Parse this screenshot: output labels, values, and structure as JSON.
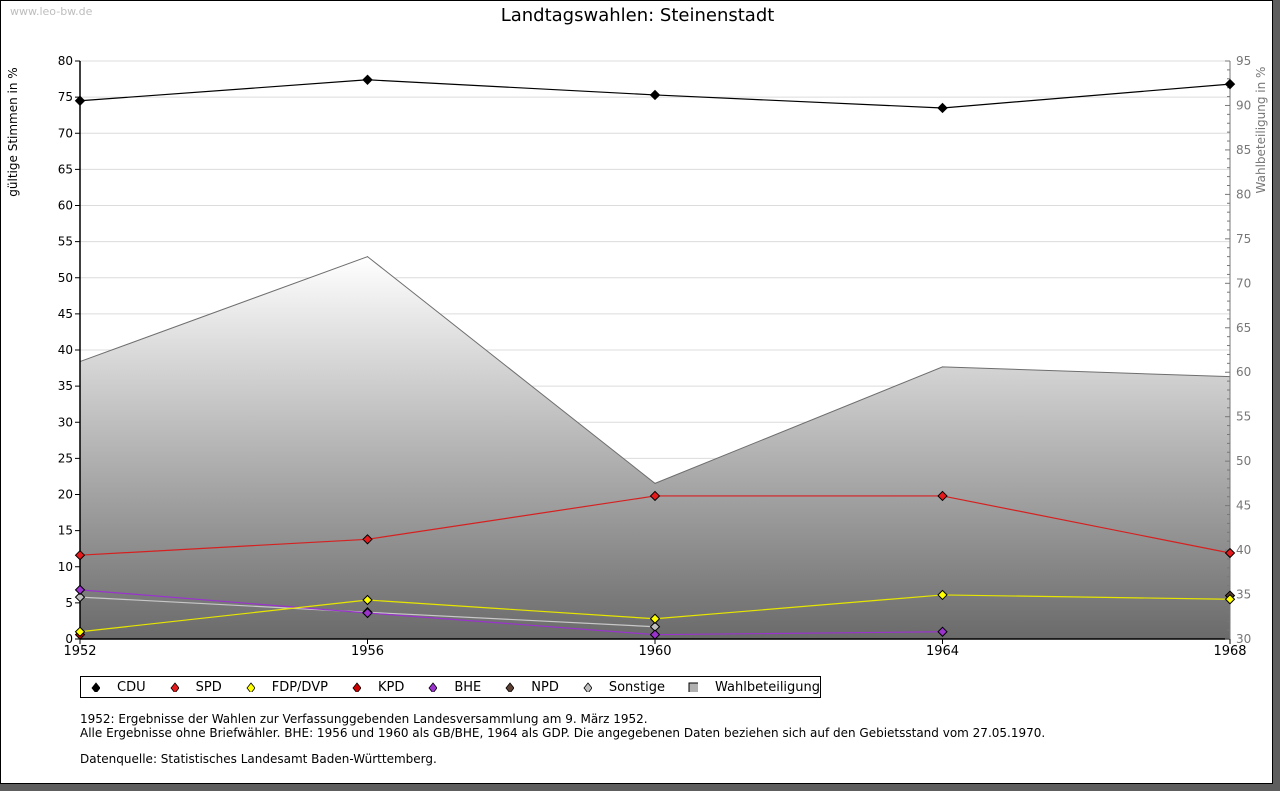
{
  "watermark": "www.leo-bw.de",
  "chart_data": {
    "type": "line",
    "title": "Landtagswahlen: Steinenstadt",
    "ylabel": "gültige Stimmen in %",
    "y2label": "Wahlbeteiligung in %",
    "ylim": [
      0,
      80
    ],
    "y2lim": [
      30,
      95
    ],
    "yticks": [
      "0",
      "5",
      "10",
      "15",
      "20",
      "25",
      "30",
      "35",
      "40",
      "45",
      "50",
      "55",
      "60",
      "65",
      "70",
      "75",
      "80"
    ],
    "y2ticks": [
      "30",
      "35",
      "40",
      "45",
      "50",
      "55",
      "60",
      "65",
      "70",
      "75",
      "80",
      "85",
      "90",
      "95"
    ],
    "categories": [
      "1952",
      "1956",
      "1960",
      "1964",
      "1968"
    ],
    "grid": true,
    "legend_position": "bottom",
    "turnout": {
      "name": "Wahlbeteiligung",
      "values": [
        61.2,
        73.0,
        47.5,
        60.6,
        59.5
      ]
    },
    "series": [
      {
        "name": "CDU",
        "color": "#000000",
        "line": "#000000",
        "values": [
          74.5,
          77.4,
          75.3,
          73.5,
          76.8
        ]
      },
      {
        "name": "SPD",
        "color": "#e41a1c",
        "line": "#d62020",
        "values": [
          11.6,
          13.8,
          19.8,
          19.8,
          11.9
        ]
      },
      {
        "name": "FDP/DVP",
        "color": "#ffff00",
        "line": "#e6e600",
        "values": [
          1.0,
          5.4,
          2.8,
          6.1,
          5.5
        ]
      },
      {
        "name": "KPD",
        "color": "#cc0000",
        "line": "#cc0000",
        "values": [
          0.6,
          null,
          null,
          null,
          null
        ]
      },
      {
        "name": "BHE",
        "color": "#9933cc",
        "line": "#9933cc",
        "values": [
          6.8,
          3.6,
          0.6,
          1.0,
          null
        ]
      },
      {
        "name": "NPD",
        "color": "#5c4033",
        "line": "#5c4033",
        "values": [
          null,
          null,
          null,
          null,
          6.0
        ]
      },
      {
        "name": "Sonstige",
        "color": "#c0c0c0",
        "line": "#c8c8c8",
        "values": [
          5.8,
          3.7,
          1.7,
          null,
          null
        ]
      }
    ]
  },
  "legend": [
    {
      "label": "CDU",
      "color": "#000000",
      "shape": "diamond"
    },
    {
      "label": "SPD",
      "color": "#e41a1c",
      "shape": "diamond"
    },
    {
      "label": "FDP/DVP",
      "color": "#ffff00",
      "shape": "diamond"
    },
    {
      "label": "KPD",
      "color": "#cc0000",
      "shape": "diamond"
    },
    {
      "label": "BHE",
      "color": "#9933cc",
      "shape": "diamond"
    },
    {
      "label": "NPD",
      "color": "#5c4033",
      "shape": "diamond"
    },
    {
      "label": "Sonstige",
      "color": "#c0c0c0",
      "shape": "diamond"
    },
    {
      "label": "Wahlbeteiligung",
      "color": "#b0b0b0",
      "shape": "square"
    }
  ],
  "notes": {
    "line1": "1952: Ergebnisse der Wahlen zur Verfassunggebenden Landesversammlung am 9. März 1952.",
    "line2": "Alle Ergebnisse ohne Briefwähler. BHE: 1956 und 1960 als GB/BHE, 1964 als GDP. Die angegebenen Daten beziehen sich auf den Gebietsstand vom 27.05.1970.",
    "source": "Datenquelle: Statistisches Landesamt Baden-Württemberg."
  }
}
